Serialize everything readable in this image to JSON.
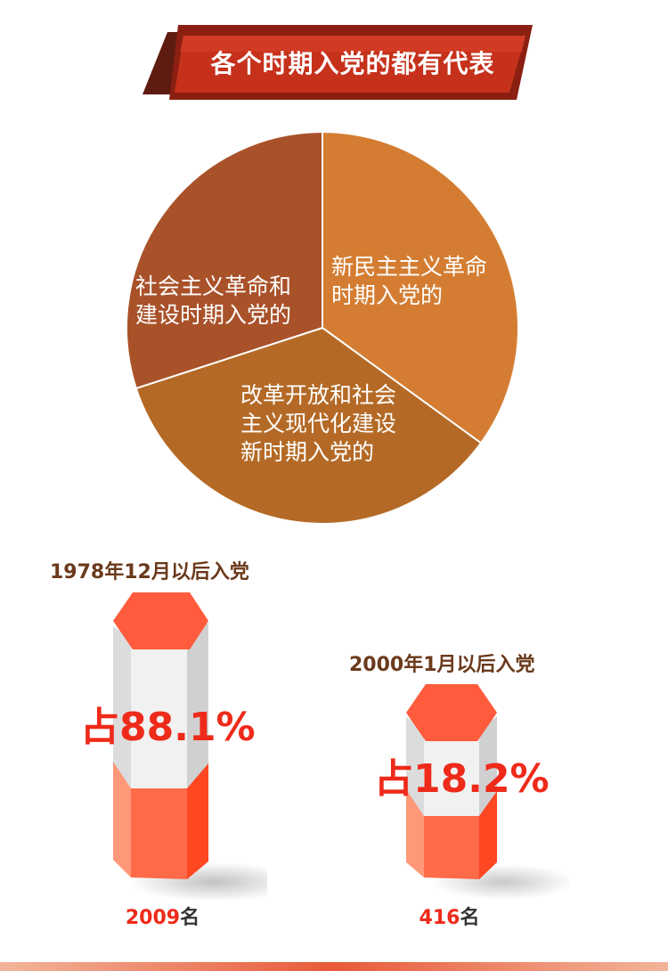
{
  "banner": {
    "title": "各个时期入党的都有代表"
  },
  "chart_data": [
    {
      "type": "pie",
      "title": "",
      "slices": [
        {
          "label": "新民主主义革命时期入党的",
          "lines": [
            "新民主主义革命",
            "时期入党的"
          ],
          "color": "#d47d32",
          "value": 35
        },
        {
          "label": "改革开放和社会主义现代化建设新时期入党的",
          "lines": [
            "改革开放和社会",
            "主义现代化建设",
            "新时期入党的"
          ],
          "color": "#b46a26",
          "value": 35
        },
        {
          "label": "社会主义革命和建设时期入党的",
          "lines": [
            "社会主义革命和",
            "建设时期入党的"
          ],
          "color": "#a9522a",
          "value": 30
        }
      ]
    },
    {
      "type": "bar",
      "title": "",
      "series": [
        {
          "title": "1978年12月以后入党",
          "percent_label": "占88.1%",
          "percent": 88.1,
          "count": "2009",
          "unit": "名"
        },
        {
          "title": "2000年1月以后入党",
          "percent_label": "占18.2%",
          "percent": 18.2,
          "count": "416",
          "unit": "名"
        }
      ]
    }
  ]
}
